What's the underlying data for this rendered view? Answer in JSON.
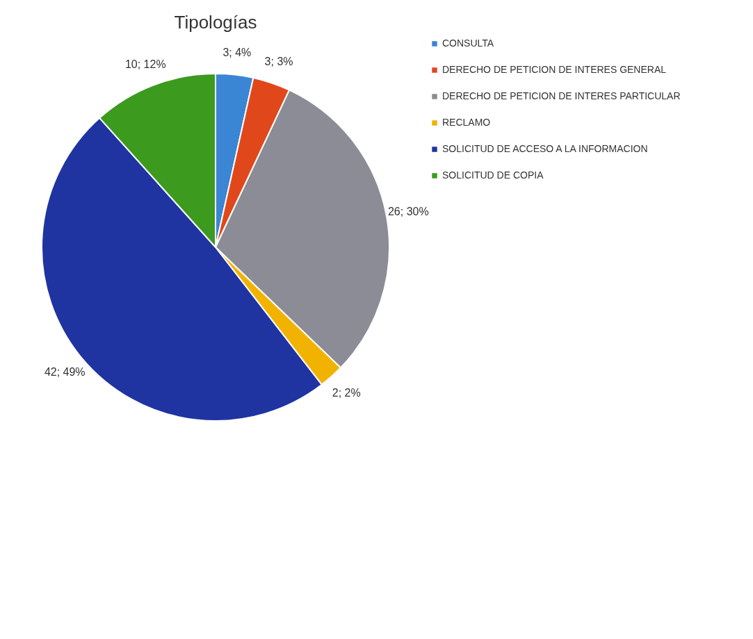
{
  "chart_data": {
    "type": "pie",
    "title": "Tipologías",
    "categories": [
      "CONSULTA",
      "DERECHO DE PETICION DE INTERES GENERAL",
      "DERECHO DE PETICION DE INTERES PARTICULAR",
      "RECLAMO",
      "SOLICITUD DE ACCESO A LA INFORMACION",
      "SOLICITUD DE COPIA"
    ],
    "values": [
      3,
      3,
      26,
      2,
      42,
      10
    ],
    "colors": [
      "#3a86d4",
      "#e0481c",
      "#8c8c96",
      "#f2b300",
      "#1f34a0",
      "#3c9a1e"
    ],
    "value_labels": [
      "3; 4%",
      "3; 3%",
      "26; 30%",
      "2; 2%",
      "42; 49%",
      "10; 12%"
    ],
    "legend": "right"
  }
}
